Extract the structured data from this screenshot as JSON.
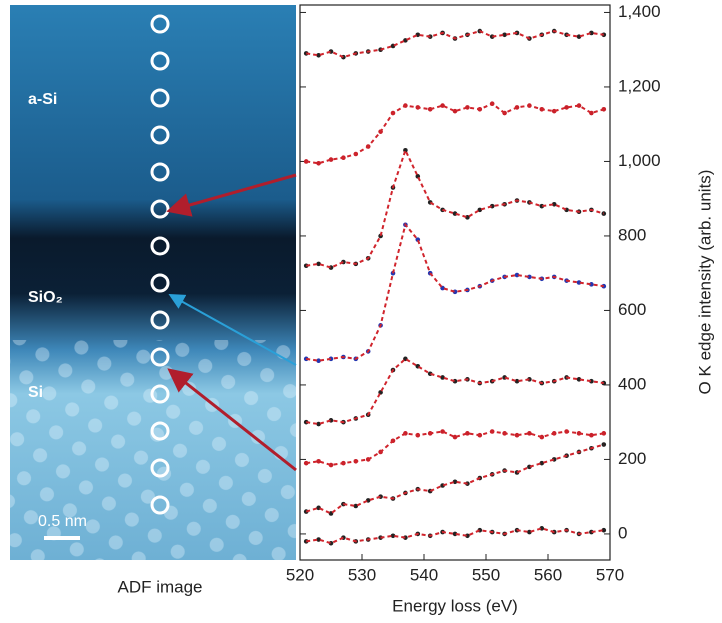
{
  "image": {
    "layers": [
      "a-Si",
      "SiO₂",
      "Si"
    ],
    "scale_bar": "0.5 nm",
    "caption": "ADF image"
  },
  "chart_data": {
    "type": "scatter",
    "x_label": "Energy loss (eV)",
    "y_label": "O K edge intensity (arb. units)",
    "x": [
      521,
      523,
      525,
      527,
      529,
      531,
      533,
      535,
      537,
      539,
      541,
      543,
      545,
      547,
      549,
      551,
      553,
      555,
      557,
      559,
      561,
      563,
      565,
      567,
      569
    ],
    "xlim": [
      520,
      570
    ],
    "xticks": [
      520,
      530,
      540,
      550,
      560,
      570
    ],
    "ylim": [
      -70,
      1420
    ],
    "yticks": [
      0,
      200,
      400,
      600,
      800,
      {
        "value": 1000,
        "label": "1,000"
      },
      {
        "value": 1200,
        "label": "1,200"
      },
      {
        "value": 1400,
        "label": "1,400"
      }
    ],
    "fit_color": "#d0242c",
    "series": [
      {
        "color": "#222222",
        "values": [
          1290,
          1285,
          1295,
          1280,
          1290,
          1295,
          1300,
          1310,
          1325,
          1340,
          1335,
          1345,
          1330,
          1340,
          1350,
          1335,
          1340,
          1345,
          1330,
          1340,
          1350,
          1340,
          1335,
          1345,
          1340
        ]
      },
      {
        "color": "#c8202a",
        "values": [
          1000,
          995,
          1005,
          1010,
          1020,
          1040,
          1080,
          1130,
          1150,
          1145,
          1140,
          1150,
          1135,
          1145,
          1140,
          1155,
          1130,
          1145,
          1150,
          1140,
          1135,
          1145,
          1150,
          1130,
          1140
        ]
      },
      {
        "color": "#222222",
        "values": [
          720,
          725,
          715,
          730,
          725,
          740,
          800,
          930,
          1030,
          960,
          890,
          870,
          860,
          850,
          870,
          880,
          885,
          895,
          890,
          880,
          885,
          870,
          865,
          870,
          860
        ]
      },
      {
        "color": "#2436b0",
        "values": [
          470,
          465,
          470,
          475,
          470,
          490,
          560,
          700,
          830,
          790,
          700,
          660,
          650,
          655,
          665,
          680,
          690,
          695,
          690,
          685,
          690,
          680,
          675,
          670,
          665
        ]
      },
      {
        "color": "#222222",
        "values": [
          300,
          295,
          305,
          300,
          310,
          320,
          380,
          440,
          470,
          450,
          430,
          420,
          410,
          415,
          405,
          410,
          420,
          410,
          415,
          405,
          410,
          420,
          415,
          410,
          405
        ]
      },
      {
        "color": "#c8202a",
        "values": [
          190,
          195,
          185,
          190,
          195,
          200,
          220,
          250,
          270,
          265,
          270,
          275,
          260,
          270,
          265,
          275,
          270,
          265,
          270,
          260,
          270,
          275,
          270,
          265,
          270
        ]
      },
      {
        "color": "#222222",
        "values": [
          60,
          70,
          55,
          80,
          75,
          90,
          100,
          95,
          110,
          120,
          115,
          130,
          140,
          135,
          150,
          160,
          170,
          165,
          180,
          190,
          200,
          210,
          220,
          230,
          240
        ]
      },
      {
        "color": "#222222",
        "values": [
          -20,
          -15,
          -25,
          -10,
          -20,
          -15,
          -10,
          -5,
          -10,
          0,
          -5,
          5,
          0,
          -5,
          10,
          5,
          0,
          10,
          5,
          15,
          5,
          10,
          0,
          5,
          10
        ]
      }
    ]
  }
}
